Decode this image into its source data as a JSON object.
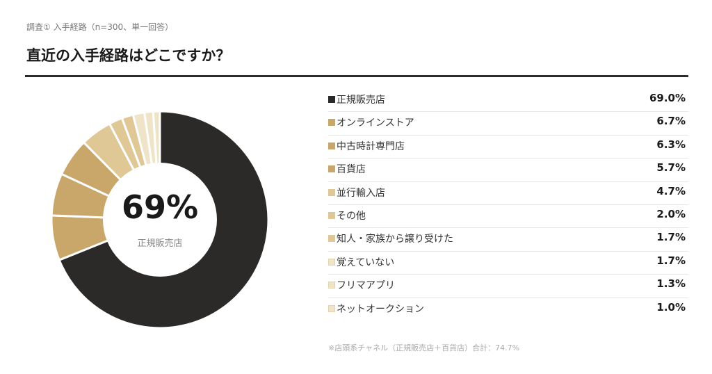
{
  "header": {
    "eyebrow": "調査① 入手経路（n=300、単一回答）",
    "title": "直近の入手経路はどこですか？"
  },
  "center": {
    "percent": "69%",
    "label": "正規販売店"
  },
  "footnote": "※店頭系チャネル（正規販売店＋百貨店）合計：74.7%",
  "chart_data": {
    "type": "pie",
    "categories": [
      "正規販売店",
      "オンラインストア",
      "中古時計専門店",
      "百貨店",
      "並行輸入店",
      "その他",
      "知人・家族から譲り受けた",
      "覚えていない",
      "フリマアプリ",
      "ネットオークション"
    ],
    "values": [
      69.0,
      6.7,
      6.3,
      5.7,
      4.7,
      2.0,
      1.7,
      1.7,
      1.3,
      1.0
    ],
    "value_labels": [
      "69.0%",
      "6.7%",
      "6.3%",
      "5.7%",
      "4.7%",
      "2.0%",
      "1.7%",
      "1.7%",
      "1.3%",
      "1.0%"
    ],
    "colors": [
      "#2b2a28",
      "#c9a76a",
      "#c9a76a",
      "#c9a76a",
      "#dfc796",
      "#dfc796",
      "#dfc796",
      "#f0e4c8",
      "#f0e4c8",
      "#f0e4c8"
    ],
    "legend_placement": "right"
  }
}
